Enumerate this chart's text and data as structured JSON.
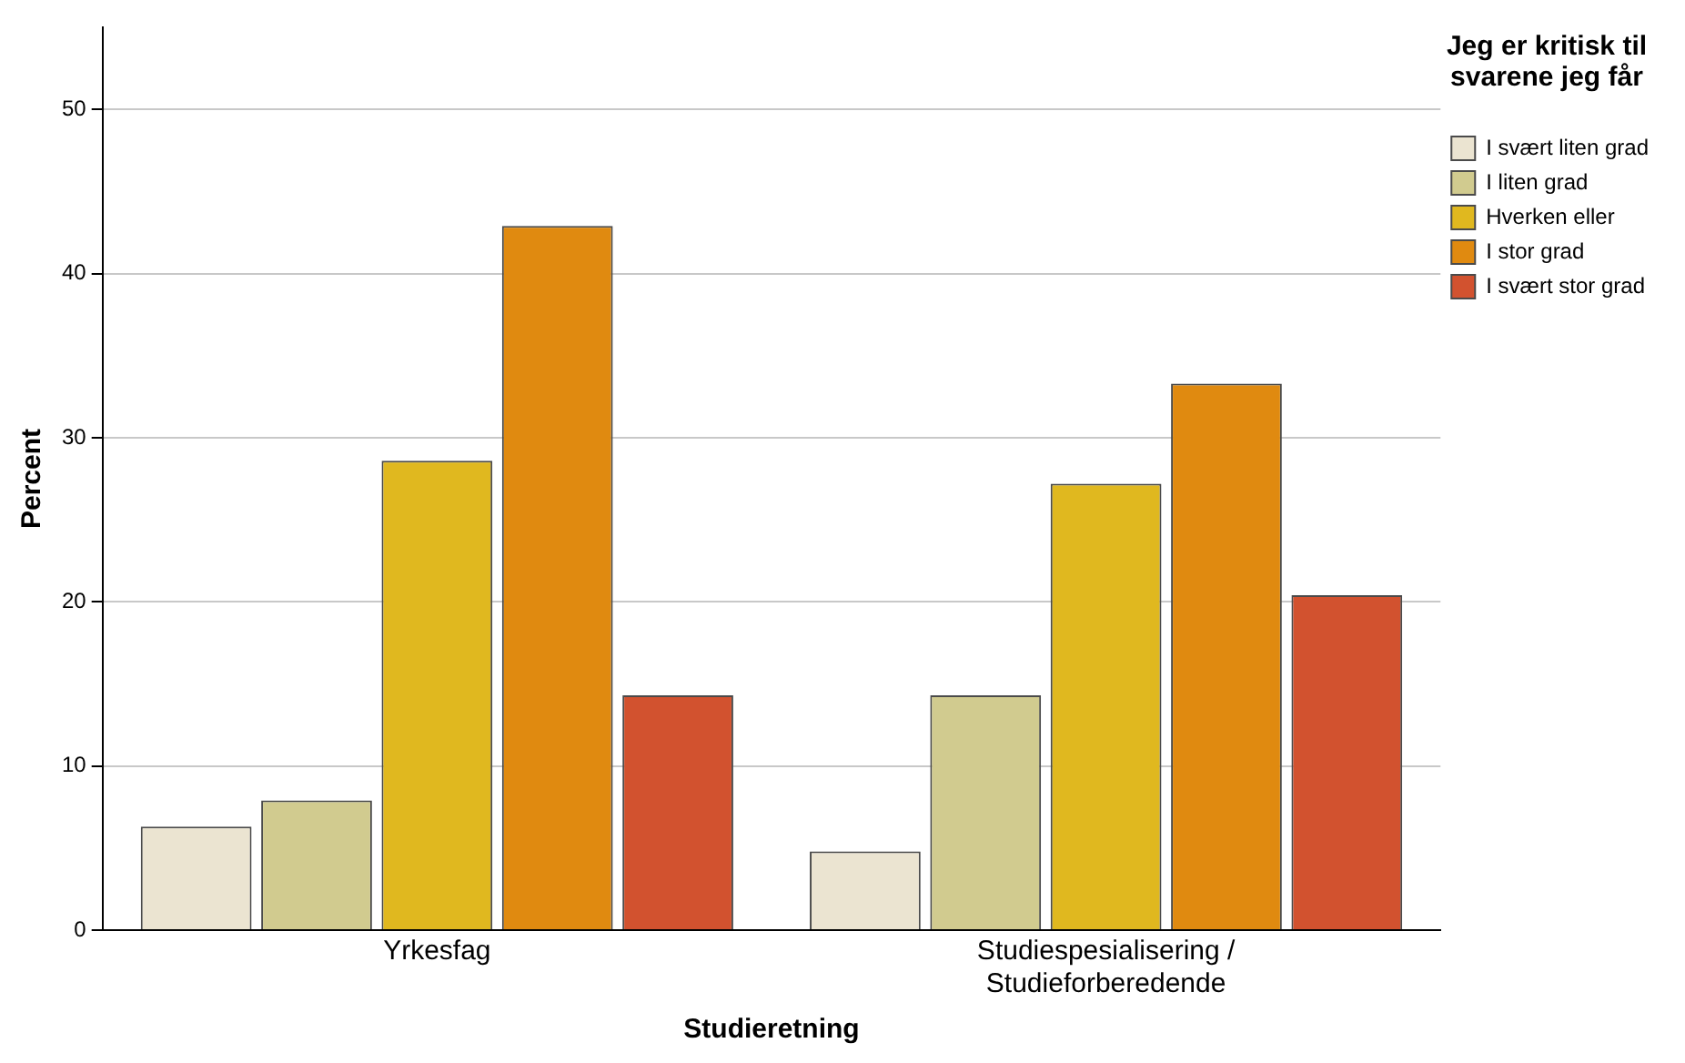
{
  "chart_data": {
    "type": "bar",
    "xlabel": "Studieretning",
    "ylabel": "Percent",
    "legend_title": "Jeg er kritisk til svarene jeg får",
    "categories": [
      "Yrkesfag",
      "Studiespesialisering / Studieforberedende"
    ],
    "series": [
      {
        "name": "I svært liten grad",
        "color": "#ebe4d1",
        "values": [
          6.3,
          4.8
        ]
      },
      {
        "name": "I liten grad",
        "color": "#d1cb8f",
        "values": [
          7.9,
          14.3
        ]
      },
      {
        "name": "Hverken eller",
        "color": "#e0b81f",
        "values": [
          28.6,
          27.2
        ]
      },
      {
        "name": "I stor grad",
        "color": "#e08a10",
        "values": [
          42.9,
          33.3
        ]
      },
      {
        "name": "I svært stor grad",
        "color": "#d2522f",
        "values": [
          14.3,
          20.4
        ]
      }
    ],
    "ylim": [
      0,
      55
    ],
    "yticks": [
      0,
      10,
      20,
      30,
      40,
      50
    ],
    "grid": "y",
    "legend": "top right"
  }
}
